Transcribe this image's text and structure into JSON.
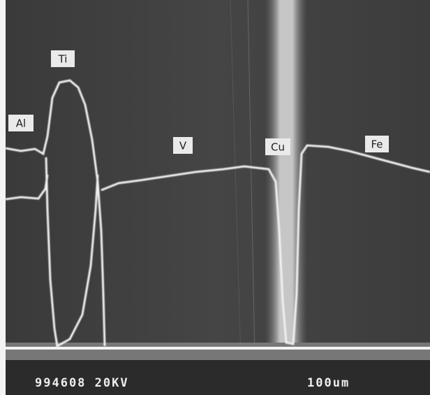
{
  "labels": [
    "Al",
    "Ti",
    "V",
    "Cu",
    "Fe"
  ],
  "footer": {
    "specimen": "994608 20KV",
    "scale": "100um"
  }
}
